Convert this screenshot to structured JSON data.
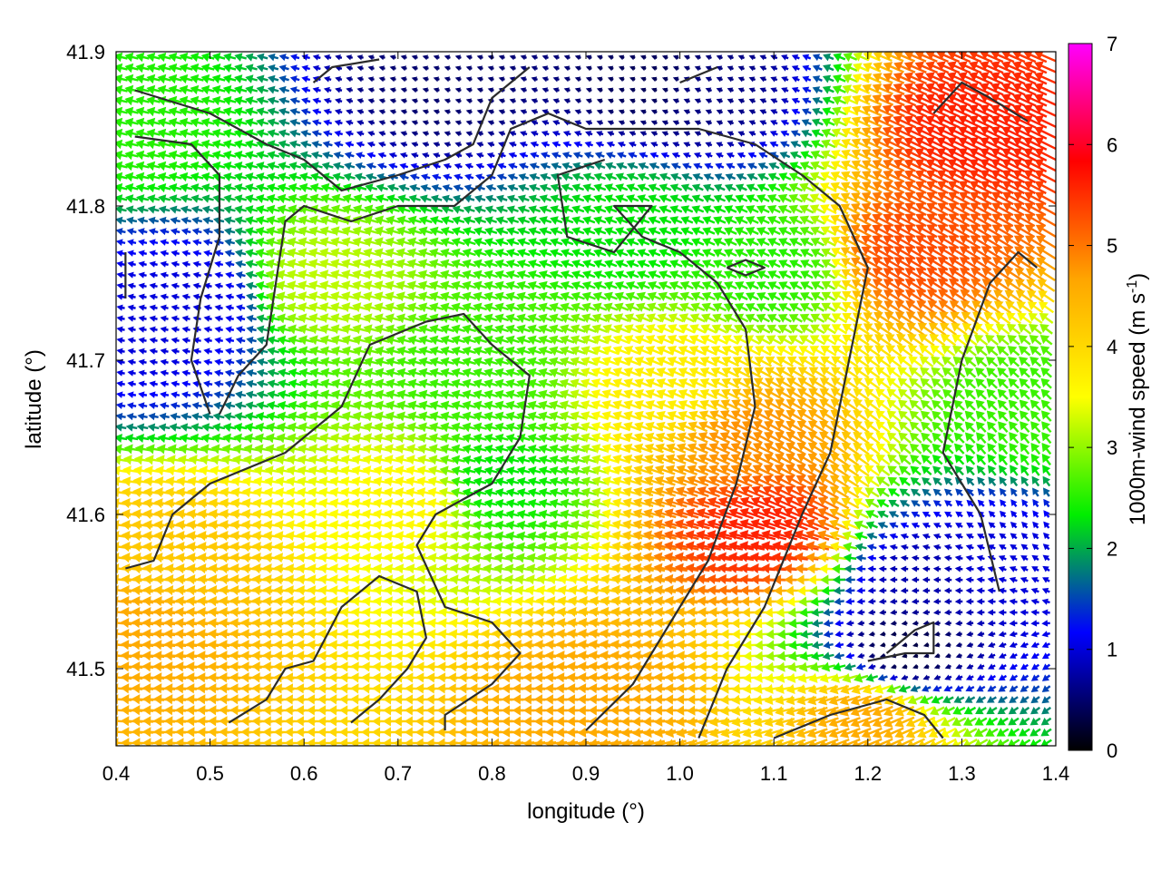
{
  "chart_data": {
    "type": "vector-field",
    "xlabel": "longitude (°)",
    "ylabel": "latitude (°)",
    "xlim": [
      0.4,
      1.4
    ],
    "ylim": [
      41.45,
      41.9
    ],
    "xticks": [
      "0.4",
      "0.5",
      "0.6",
      "0.7",
      "0.8",
      "0.9",
      "1.0",
      "1.1",
      "1.2",
      "1.3",
      "1.4"
    ],
    "yticks": [
      "41.5",
      "41.6",
      "41.7",
      "41.8",
      "41.9"
    ],
    "colorbar": {
      "label": "1000m-wind speed (m s-1)",
      "label_main": "1000m-wind speed (m s",
      "label_sup": "-1",
      "label_end": ")",
      "range": [
        0,
        7
      ],
      "ticks": [
        "0",
        "1",
        "2",
        "3",
        "4",
        "5",
        "6",
        "7"
      ],
      "colormap": [
        "#000000",
        "#0000ff",
        "#00ee00",
        "#ffff00",
        "#ffa500",
        "#ff0000",
        "#ff00ff"
      ]
    },
    "contour_color": "#2b2b2b",
    "speed_hotspots": [
      {
        "lon": 0.42,
        "lat": 41.53,
        "speed": 4.6
      },
      {
        "lon": 0.45,
        "lat": 41.57,
        "speed": 4.2
      },
      {
        "lon": 1.09,
        "lat": 41.59,
        "speed": 5.6
      },
      {
        "lon": 1.07,
        "lat": 41.65,
        "speed": 4.8
      },
      {
        "lon": 1.32,
        "lat": 41.85,
        "speed": 5.6
      },
      {
        "lon": 1.25,
        "lat": 41.77,
        "speed": 5.3
      },
      {
        "lon": 0.92,
        "lat": 41.48,
        "speed": 4.6
      },
      {
        "lon": 1.2,
        "lat": 41.47,
        "speed": 4.6
      },
      {
        "lon": 0.62,
        "lat": 41.75,
        "speed": 3.2
      },
      {
        "lon": 0.72,
        "lat": 41.61,
        "speed": 3.6
      },
      {
        "lon": 0.8,
        "lat": 41.62,
        "speed": 2.3
      },
      {
        "lon": 0.78,
        "lat": 41.69,
        "speed": 2.6
      },
      {
        "lon": 0.48,
        "lat": 41.74,
        "speed": 1.0
      },
      {
        "lon": 0.43,
        "lat": 41.72,
        "speed": 1.0
      },
      {
        "lon": 0.75,
        "lat": 41.88,
        "speed": 0.5
      },
      {
        "lon": 0.97,
        "lat": 41.88,
        "speed": 0.4
      },
      {
        "lon": 1.02,
        "lat": 41.87,
        "speed": 0.6
      },
      {
        "lon": 1.26,
        "lat": 41.56,
        "speed": 0.8
      },
      {
        "lon": 1.34,
        "lat": 41.57,
        "speed": 1.0
      },
      {
        "lon": 1.24,
        "lat": 41.51,
        "speed": 0.3
      },
      {
        "lon": 0.95,
        "lat": 41.79,
        "speed": 2.3
      },
      {
        "lon": 1.1,
        "lat": 41.76,
        "speed": 2.5
      },
      {
        "lon": 1.37,
        "lat": 41.67,
        "speed": 2.6
      },
      {
        "lon": 0.42,
        "lat": 41.85,
        "speed": 2.5
      },
      {
        "lon": 1.0,
        "lat": 41.68,
        "speed": 3.7
      }
    ],
    "flow_sources": [
      {
        "lon": 1.36,
        "lat": 41.52
      },
      {
        "lon": 1.14,
        "lat": 41.58
      },
      {
        "lon": 0.98,
        "lat": 41.46
      },
      {
        "lon": 1.3,
        "lat": 41.6
      }
    ],
    "contours": [
      [
        [
          0.41,
          41.565
        ],
        [
          0.44,
          41.57
        ],
        [
          0.46,
          41.6
        ],
        [
          0.5,
          41.62
        ],
        [
          0.58,
          41.64
        ],
        [
          0.64,
          41.67
        ],
        [
          0.67,
          41.71
        ],
        [
          0.73,
          41.725
        ],
        [
          0.77,
          41.73
        ],
        [
          0.8,
          41.71
        ],
        [
          0.84,
          41.69
        ],
        [
          0.83,
          41.65
        ],
        [
          0.8,
          41.62
        ],
        [
          0.74,
          41.6
        ],
        [
          0.72,
          41.58
        ],
        [
          0.75,
          41.54
        ],
        [
          0.8,
          41.53
        ],
        [
          0.83,
          41.51
        ],
        [
          0.8,
          41.49
        ],
        [
          0.75,
          41.47
        ],
        [
          0.75,
          41.46
        ]
      ],
      [
        [
          0.52,
          41.465
        ],
        [
          0.56,
          41.48
        ],
        [
          0.58,
          41.5
        ],
        [
          0.61,
          41.505
        ],
        [
          0.64,
          41.54
        ],
        [
          0.68,
          41.56
        ],
        [
          0.72,
          41.55
        ],
        [
          0.73,
          41.52
        ],
        [
          0.71,
          41.5
        ],
        [
          0.68,
          41.48
        ],
        [
          0.65,
          41.465
        ]
      ],
      [
        [
          1.02,
          41.455
        ],
        [
          1.05,
          41.5
        ],
        [
          1.09,
          41.54
        ],
        [
          1.13,
          41.6
        ],
        [
          1.16,
          41.64
        ],
        [
          1.18,
          41.7
        ],
        [
          1.2,
          41.76
        ],
        [
          1.17,
          41.8
        ],
        [
          1.13,
          41.82
        ],
        [
          1.08,
          41.84
        ],
        [
          1.02,
          41.85
        ],
        [
          0.95,
          41.85
        ],
        [
          0.9,
          41.85
        ],
        [
          0.86,
          41.86
        ],
        [
          0.82,
          41.85
        ],
        [
          0.8,
          41.82
        ],
        [
          0.76,
          41.8
        ],
        [
          0.7,
          41.8
        ],
        [
          0.65,
          41.79
        ],
        [
          0.6,
          41.8
        ],
        [
          0.58,
          41.79
        ],
        [
          0.57,
          41.75
        ],
        [
          0.56,
          41.71
        ],
        [
          0.53,
          41.69
        ],
        [
          0.51,
          41.665
        ]
      ],
      [
        [
          0.9,
          41.46
        ],
        [
          0.95,
          41.49
        ],
        [
          0.99,
          41.53
        ],
        [
          1.03,
          41.57
        ],
        [
          1.06,
          41.62
        ],
        [
          1.08,
          41.67
        ],
        [
          1.07,
          41.72
        ],
        [
          1.04,
          41.75
        ],
        [
          1.0,
          41.77
        ],
        [
          0.96,
          41.78
        ],
        [
          0.93,
          41.8
        ],
        [
          0.97,
          41.8
        ],
        [
          0.93,
          41.77
        ],
        [
          0.88,
          41.78
        ],
        [
          0.87,
          41.82
        ],
        [
          0.92,
          41.83
        ]
      ],
      [
        [
          0.42,
          41.875
        ],
        [
          0.5,
          41.86
        ],
        [
          0.56,
          41.84
        ],
        [
          0.6,
          41.83
        ],
        [
          0.64,
          41.81
        ],
        [
          0.7,
          41.82
        ],
        [
          0.75,
          41.83
        ],
        [
          0.78,
          41.84
        ],
        [
          0.8,
          41.87
        ],
        [
          0.84,
          41.89
        ]
      ],
      [
        [
          0.42,
          41.845
        ],
        [
          0.48,
          41.84
        ],
        [
          0.51,
          41.82
        ],
        [
          0.51,
          41.78
        ],
        [
          0.49,
          41.74
        ],
        [
          0.48,
          41.7
        ],
        [
          0.5,
          41.665
        ]
      ],
      [
        [
          1.34,
          41.55
        ],
        [
          1.32,
          41.6
        ],
        [
          1.3,
          41.62
        ],
        [
          1.28,
          41.64
        ],
        [
          1.3,
          41.7
        ],
        [
          1.33,
          41.75
        ],
        [
          1.36,
          41.77
        ],
        [
          1.38,
          41.76
        ]
      ],
      [
        [
          1.27,
          41.86
        ],
        [
          1.3,
          41.88
        ],
        [
          1.33,
          41.87
        ],
        [
          1.37,
          41.855
        ]
      ],
      [
        [
          1.2,
          41.505
        ],
        [
          1.24,
          41.51
        ],
        [
          1.27,
          41.51
        ],
        [
          1.27,
          41.53
        ],
        [
          1.25,
          41.525
        ],
        [
          1.22,
          41.51
        ]
      ],
      [
        [
          1.1,
          41.455
        ],
        [
          1.16,
          41.47
        ],
        [
          1.22,
          41.48
        ],
        [
          1.26,
          41.47
        ],
        [
          1.28,
          41.455
        ]
      ],
      [
        [
          0.41,
          41.74
        ],
        [
          0.41,
          41.77
        ]
      ],
      [
        [
          1.05,
          41.76
        ],
        [
          1.07,
          41.765
        ],
        [
          1.09,
          41.76
        ],
        [
          1.07,
          41.755
        ],
        [
          1.05,
          41.76
        ]
      ],
      [
        [
          0.61,
          41.88
        ],
        [
          0.63,
          41.89
        ],
        [
          0.68,
          41.895
        ]
      ],
      [
        [
          1.0,
          41.88
        ],
        [
          1.04,
          41.89
        ]
      ]
    ]
  }
}
